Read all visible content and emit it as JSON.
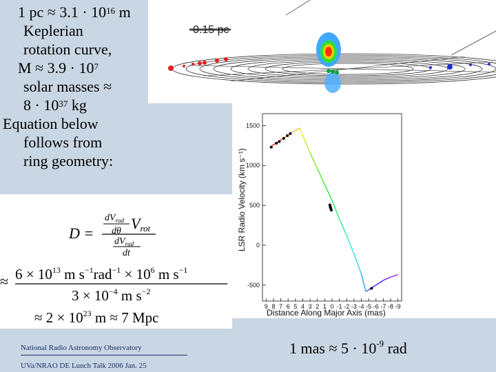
{
  "sidebar": {
    "line1_prefix": "1 pc ≈ 3.1 · 10",
    "line1_exp": "16",
    "line1_unit": " m",
    "kepler1": "Keplerian",
    "kepler2": "rotation curve,",
    "mass_prefix": "M ≈ 3.9 · 10",
    "mass_exp": "7",
    "solar": "solar masses  ≈",
    "kg_prefix": "8 · 10",
    "kg_exp": "37",
    "kg_unit": " kg",
    "eq1": "Equation below",
    "eq2": "follows from",
    "eq3": "ring geometry:"
  },
  "disk_image": {
    "scale_label": "0.15 pc"
  },
  "equation": {
    "D": "D =",
    "numerator": "dV",
    "num_sub": "rad",
    "num_den": "dθ",
    "vrot": "V",
    "vrot_sub": "rot",
    "denominator": "dV",
    "den_sub": "rad",
    "den_den": "dt",
    "approx": "≈",
    "big_num": "6 × 10",
    "big_num_exp": "13",
    "big_num_units": " m s",
    "big_num_units_exp": "−1",
    "rad_unit": "rad",
    "rad_exp": "−1",
    "times": " × 10",
    "times_exp": "6",
    "ms": " m s",
    "ms_exp": "−1",
    "big_den": "3 × 10",
    "big_den_exp": "−4",
    "big_den_units": " m s",
    "big_den_units_exp": "−2",
    "result": "≈ 2 × 10",
    "result_exp": "23",
    "result_units": " m ≈ 7 Mpc"
  },
  "footer": {
    "org": "National Radio Astronomy Observatory",
    "talk": "UVa/NRAO DE Lunch Talk 2006 Jan. 25"
  },
  "mas_note": {
    "prefix": "1 mas ≈ 5 · 10",
    "exp": "-9",
    "unit": " rad"
  },
  "chart_data": {
    "type": "line",
    "xlabel": "Distance Along Major Axis (mas)",
    "ylabel": "LSR Radio Velocity (km s⁻¹)",
    "xticks": [
      "9",
      "8",
      "7",
      "6",
      "5",
      "4",
      "3",
      "2",
      "1",
      "0",
      "-1",
      "-2",
      "-3",
      "-4",
      "-5",
      "-6",
      "-7",
      "-8",
      "-9"
    ],
    "yticks": [
      "1500",
      "1000",
      "500",
      "0",
      "-500"
    ],
    "xlim": [
      9.5,
      -9.5
    ],
    "ylim": [
      -700,
      1650
    ],
    "curve": [
      [
        8.5,
        1230
      ],
      [
        7.5,
        1290
      ],
      [
        6.5,
        1350
      ],
      [
        5.5,
        1410
      ],
      [
        4.4,
        1470
      ],
      [
        3.8,
        1330
      ],
      [
        3.0,
        1160
      ],
      [
        2.0,
        960
      ],
      [
        1.0,
        760
      ],
      [
        0,
        560
      ],
      [
        -1.0,
        330
      ],
      [
        -2.0,
        120
      ],
      [
        -3.0,
        -110
      ],
      [
        -4.0,
        -360
      ],
      [
        -4.6,
        -580
      ],
      [
        -5.0,
        -560
      ],
      [
        -6.0,
        -500
      ],
      [
        -7.0,
        -440
      ],
      [
        -8.0,
        -400
      ],
      [
        -9.0,
        -370
      ]
    ],
    "points": [
      [
        8.3,
        1230
      ],
      [
        7.6,
        1280
      ],
      [
        7.2,
        1300
      ],
      [
        6.6,
        1340
      ],
      [
        6.1,
        1375
      ],
      [
        5.7,
        1400
      ],
      [
        0.3,
        505
      ],
      [
        0.25,
        485
      ],
      [
        0.2,
        470
      ],
      [
        0.15,
        455
      ],
      [
        0.1,
        440
      ],
      [
        -5.4,
        -540
      ]
    ]
  },
  "colors": {
    "background": "#c9d6e3",
    "footer_text": "#1a2c6b",
    "disk_red": "#e52020",
    "disk_blue": "#2030d0",
    "maser_green": "#10a040"
  }
}
